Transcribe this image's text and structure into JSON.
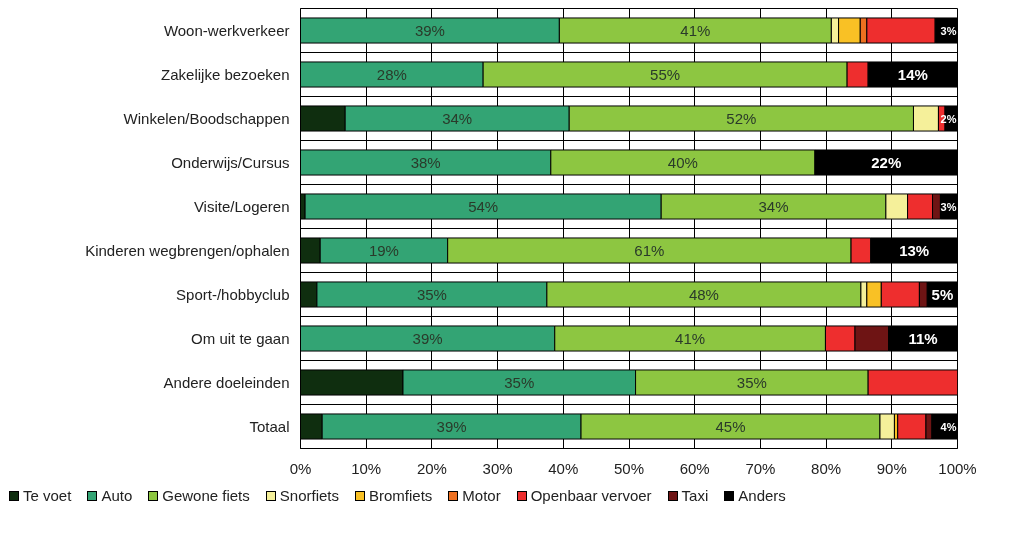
{
  "chart_data": {
    "type": "bar",
    "orientation": "horizontal",
    "stacked": true,
    "categories": [
      "Woon-werkverkeer",
      "Zakelijke bezoeken",
      "Winkelen/Boodschappen",
      "Onderwijs/Cursus",
      "Visite/Logeren",
      "Kinderen wegbrengen/ophalen",
      "Sport-/hobbyclub",
      "Om uit te gaan",
      "Andere doeleinden",
      "Totaal"
    ],
    "series": [
      {
        "name": "Te voet",
        "color": "#0f2e0f",
        "values": [
          null,
          null,
          6.8,
          null,
          0.7,
          3.0,
          2.5,
          null,
          15.6,
          3.3
        ]
      },
      {
        "name": "Auto",
        "color": "#33a474",
        "values": [
          39.4,
          27.8,
          34.1,
          38.1,
          54.2,
          19.4,
          35.0,
          38.7,
          35.4,
          39.4
        ],
        "value_labels": [
          "39%",
          "28%",
          "34%",
          "38%",
          "54%",
          "19%",
          "35%",
          "39%",
          "35%",
          "39%"
        ]
      },
      {
        "name": "Gewone fiets",
        "color": "#8dc641",
        "values": [
          41.4,
          55.4,
          52.4,
          40.2,
          34.2,
          61.4,
          47.8,
          41.2,
          35.4,
          45.5
        ],
        "value_labels": [
          "41%",
          "55%",
          "52%",
          "40%",
          "34%",
          "61%",
          "48%",
          "41%",
          "35%",
          "45%"
        ]
      },
      {
        "name": "Snorfiets",
        "color": "#f5f09a",
        "values": [
          1.1,
          null,
          3.8,
          null,
          3.3,
          null,
          0.9,
          null,
          null,
          2.2
        ]
      },
      {
        "name": "Bromfiets",
        "color": "#f9c125",
        "values": [
          3.3,
          null,
          null,
          null,
          null,
          null,
          2.2,
          null,
          null,
          0.5
        ]
      },
      {
        "name": "Motor",
        "color": "#ee7020",
        "values": [
          1.0,
          null,
          null,
          null,
          null,
          null,
          null,
          null,
          null,
          null
        ]
      },
      {
        "name": "Openbaar vervoer",
        "color": "#ee2e2e",
        "values": [
          10.4,
          3.2,
          1.0,
          null,
          3.8,
          3.0,
          5.8,
          4.5,
          13.6,
          4.3
        ]
      },
      {
        "name": "Taxi",
        "color": "#6e1414",
        "values": [
          null,
          null,
          null,
          null,
          1.2,
          null,
          1.2,
          5.1,
          null,
          0.9
        ]
      },
      {
        "name": "Anders",
        "color": "#000000",
        "values": [
          3.4,
          13.6,
          1.9,
          21.7,
          2.6,
          13.2,
          4.6,
          10.5,
          null,
          3.9
        ],
        "value_labels": [
          "3%",
          "14%",
          "2%",
          "22%",
          "3%",
          "13%",
          "5%",
          "11%",
          null,
          "4%"
        ]
      }
    ],
    "xlim": [
      0,
      100
    ],
    "xticks": [
      {
        "value": 0,
        "label": "0%"
      },
      {
        "value": 10,
        "label": "10%"
      },
      {
        "value": 20,
        "label": "20%"
      },
      {
        "value": 30,
        "label": "30%"
      },
      {
        "value": 40,
        "label": "40%"
      },
      {
        "value": 50,
        "label": "50%"
      },
      {
        "value": 60,
        "label": "60%"
      },
      {
        "value": 70,
        "label": "70%"
      },
      {
        "value": 80,
        "label": "80%"
      },
      {
        "value": 90,
        "label": "90%"
      },
      {
        "value": 100,
        "label": "100%"
      }
    ],
    "grid": true,
    "legend": "bottom"
  }
}
